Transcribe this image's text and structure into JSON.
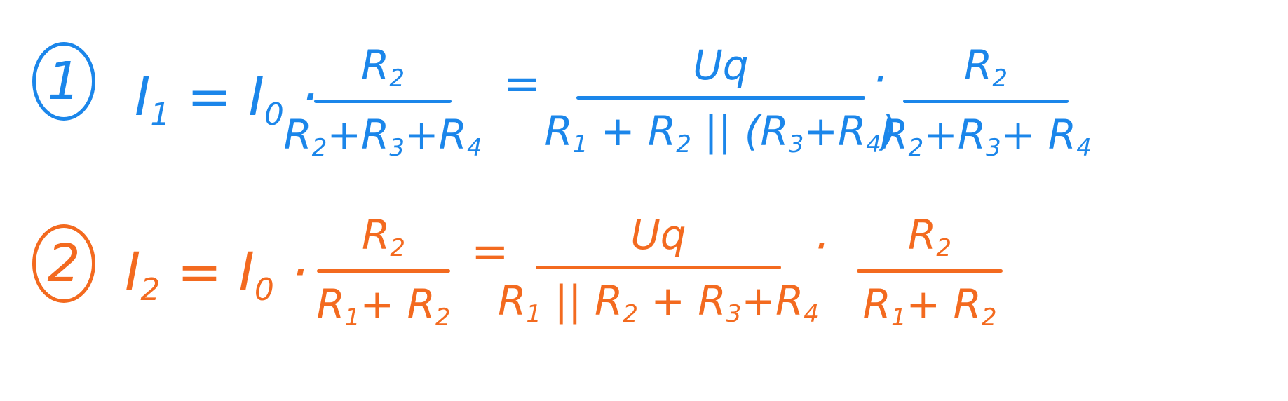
{
  "colors": {
    "blue": "#1b86ea",
    "orange": "#f36a1f"
  },
  "equations": [
    {
      "number": "1",
      "lhs": {
        "I": "I",
        "I_sub": "1",
        "eq": "=",
        "I0": "I",
        "I0_sub": "0",
        "dot": "·"
      },
      "frac_a": {
        "num": {
          "main": "R",
          "sub": "2"
        },
        "den": [
          {
            "main": "R",
            "sub": "2"
          },
          {
            "text": "+R",
            "sub": "3"
          },
          {
            "text": "+R",
            "sub": "4"
          }
        ]
      },
      "equals": "=",
      "frac_b": {
        "num": "Uq",
        "den": [
          {
            "main": "R",
            "sub": "1"
          },
          {
            "text": " + R",
            "sub": "2"
          },
          {
            "text": " || (R",
            "sub": "3"
          },
          {
            "text": "+R",
            "sub": "4"
          },
          {
            "text": ")"
          }
        ]
      },
      "times": "·",
      "frac_c": {
        "num": {
          "main": "R",
          "sub": "2"
        },
        "den": [
          {
            "main": "R",
            "sub": "2"
          },
          {
            "text": "+R",
            "sub": "3"
          },
          {
            "text": "+ R",
            "sub": "4"
          }
        ]
      }
    },
    {
      "number": "2",
      "lhs": {
        "I": "I",
        "I_sub": "2",
        "eq": "=",
        "I0": "I",
        "I0_sub": "0",
        "dot": "·"
      },
      "frac_a": {
        "num": {
          "main": "R",
          "sub": "2"
        },
        "den": [
          {
            "main": "R",
            "sub": "1"
          },
          {
            "text": "+ R",
            "sub": "2"
          }
        ]
      },
      "equals": "=",
      "frac_b": {
        "num": "Uq",
        "den": [
          {
            "main": "R",
            "sub": "1"
          },
          {
            "text": " || R",
            "sub": "2"
          },
          {
            "text": " + R",
            "sub": "3"
          },
          {
            "text": "+R",
            "sub": "4"
          }
        ]
      },
      "times": "·",
      "frac_c": {
        "num": {
          "main": "R",
          "sub": "2"
        },
        "den": [
          {
            "main": "R",
            "sub": "1"
          },
          {
            "text": "+ R",
            "sub": "2"
          }
        ]
      }
    }
  ]
}
